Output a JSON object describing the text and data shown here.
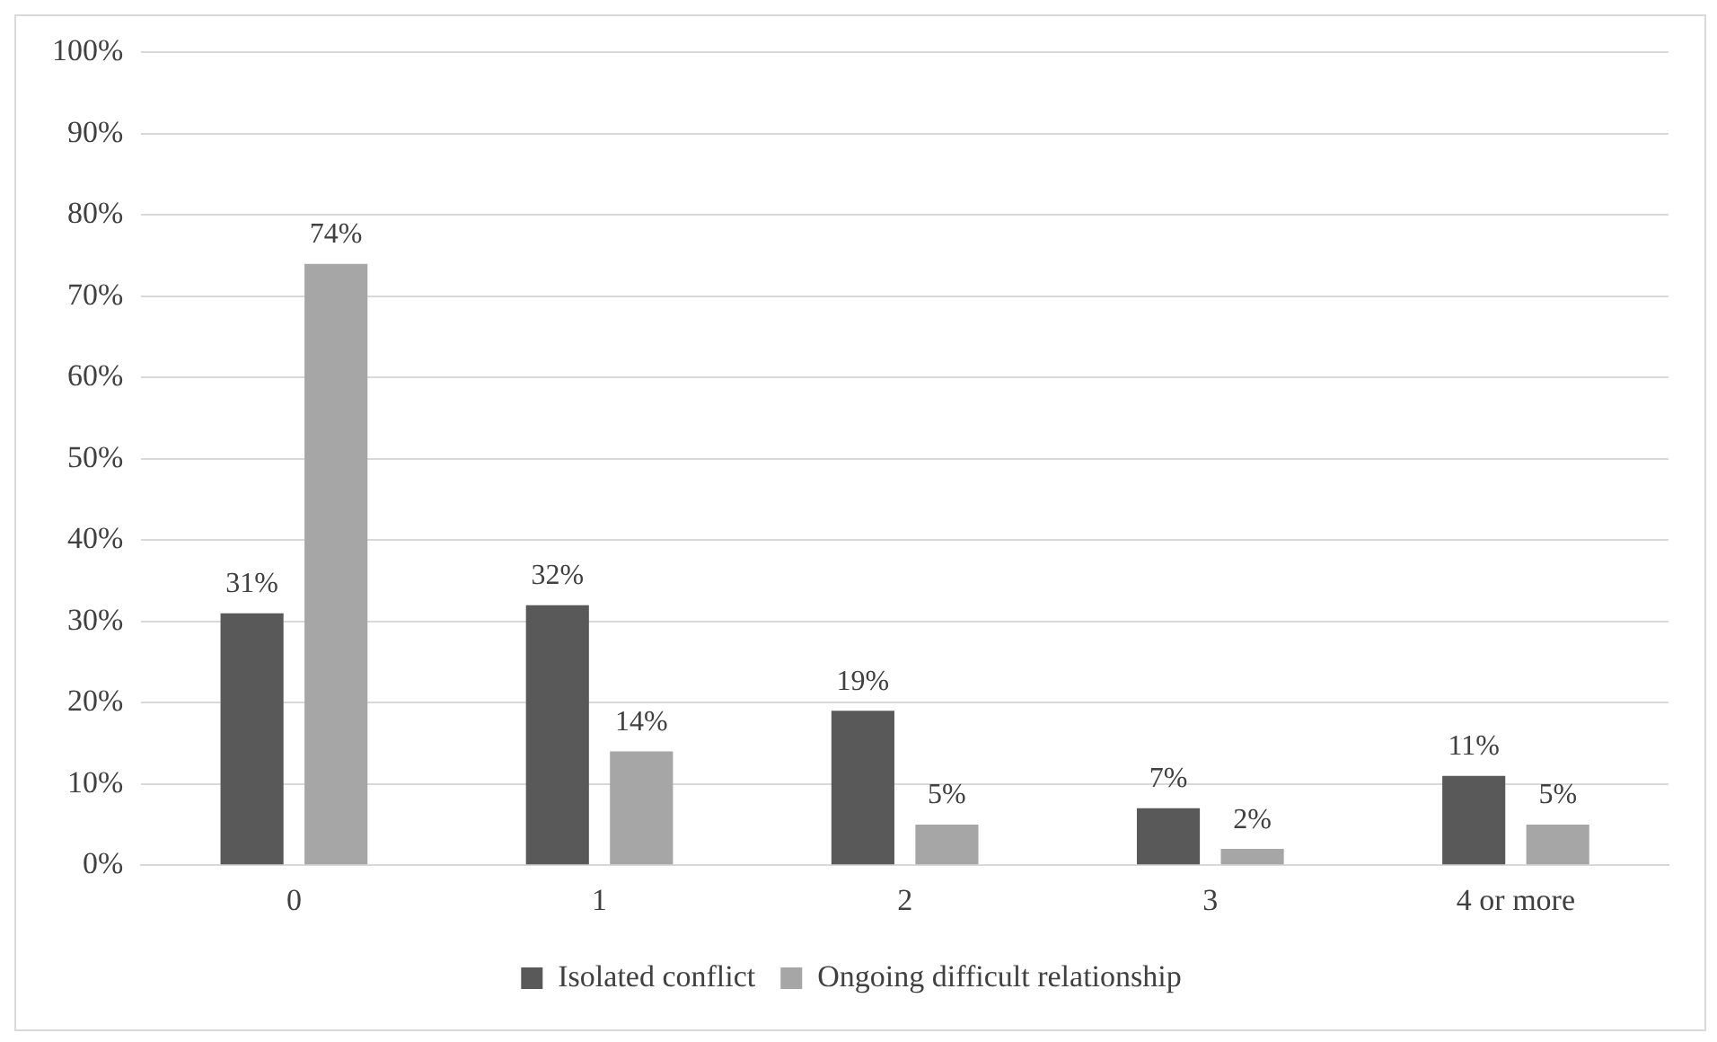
{
  "chart_data": {
    "type": "bar",
    "categories": [
      "0",
      "1",
      "2",
      "3",
      "4 or more"
    ],
    "series": [
      {
        "name": "Isolated conflict",
        "color": "#595959",
        "values": [
          31,
          32,
          19,
          7,
          11
        ],
        "value_labels": [
          "31%",
          "32%",
          "19%",
          "7%",
          "11%"
        ]
      },
      {
        "name": "Ongoing difficult relationship",
        "color": "#a6a6a6",
        "values": [
          74,
          14,
          5,
          2,
          5
        ],
        "value_labels": [
          "74%",
          "14%",
          "5%",
          "2%",
          "5%"
        ]
      }
    ],
    "ylim": [
      0,
      100
    ],
    "yticks": [
      {
        "value": 0,
        "label": "0%"
      },
      {
        "value": 10,
        "label": "10%"
      },
      {
        "value": 20,
        "label": "20%"
      },
      {
        "value": 30,
        "label": "30%"
      },
      {
        "value": 40,
        "label": "40%"
      },
      {
        "value": 50,
        "label": "50%"
      },
      {
        "value": 60,
        "label": "60%"
      },
      {
        "value": 70,
        "label": "70%"
      },
      {
        "value": 80,
        "label": "80%"
      },
      {
        "value": 90,
        "label": "90%"
      },
      {
        "value": 100,
        "label": "100%"
      }
    ],
    "grid": "y",
    "legend": "bottom"
  }
}
